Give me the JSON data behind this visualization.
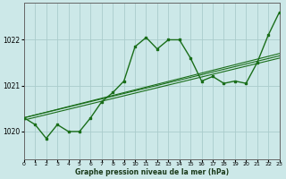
{
  "xlabel": "Graphe pression niveau de la mer (hPa)",
  "ylim": [
    1019.4,
    1022.8
  ],
  "xlim": [
    0,
    23
  ],
  "xticks": [
    0,
    1,
    2,
    3,
    4,
    5,
    6,
    7,
    8,
    9,
    10,
    11,
    12,
    13,
    14,
    15,
    16,
    17,
    18,
    19,
    20,
    21,
    22,
    23
  ],
  "yticks": [
    1020,
    1021,
    1022
  ],
  "background_color": "#cce8e8",
  "grid_color": "#aacccc",
  "line_color": "#1a6e1a",
  "s1": [
    1020.3,
    1020.15,
    1019.85,
    1020.15,
    1020.0,
    1020.0,
    1020.3,
    1020.65,
    1020.85,
    1021.1,
    1021.85,
    1022.05,
    1021.8,
    1022.0,
    1022.0,
    1021.6,
    1021.1,
    1021.2,
    1021.05,
    1021.1,
    1021.05,
    1021.5,
    1022.1,
    1022.6
  ],
  "diag_lines": [
    [
      1020.3,
      1021.7
    ],
    [
      1020.3,
      1021.65
    ],
    [
      1020.25,
      1021.6
    ]
  ]
}
